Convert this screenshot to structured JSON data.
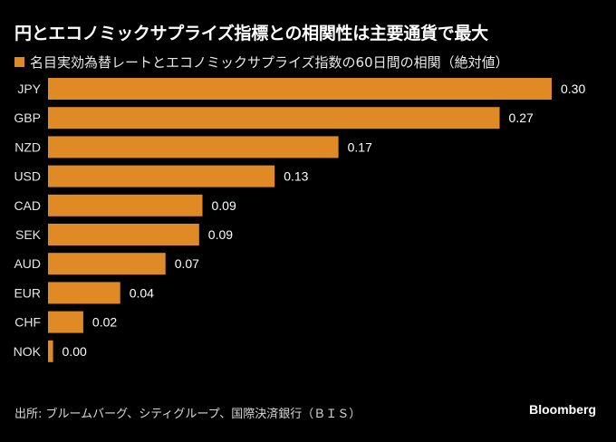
{
  "colors": {
    "bar": "#E08A25",
    "background": "#000000"
  },
  "chart_data": {
    "type": "bar",
    "orientation": "horizontal",
    "title": "円とエコノミックサプライズ指標との相関性は主要通貨で最大",
    "legend": [
      "名目実効為替レートとエコノミックサプライズ指数の60日間の相関（絶対値）"
    ],
    "legend_position": "top-left",
    "categories": [
      "JPY",
      "GBP",
      "NZD",
      "USD",
      "CAD",
      "SEK",
      "AUD",
      "EUR",
      "CHF",
      "NOK"
    ],
    "values": [
      0.3,
      0.27,
      0.17,
      0.13,
      0.09,
      0.09,
      0.07,
      0.04,
      0.02,
      0.0
    ],
    "bar_lengths": [
      0.3,
      0.269,
      0.173,
      0.135,
      0.092,
      0.09,
      0.07,
      0.043,
      0.021,
      0.003
    ],
    "value_labels": [
      "0.30",
      "0.27",
      "0.17",
      "0.13",
      "0.09",
      "0.09",
      "0.07",
      "0.04",
      "0.02",
      "0.00"
    ],
    "xlim": [
      0,
      0.3
    ],
    "grid": false,
    "xlabel": "",
    "ylabel": ""
  },
  "footer": {
    "source": "出所: ブルームバーグ、シティグループ、国際決済銀行（ＢＩＳ）",
    "brand": "Bloomberg"
  }
}
